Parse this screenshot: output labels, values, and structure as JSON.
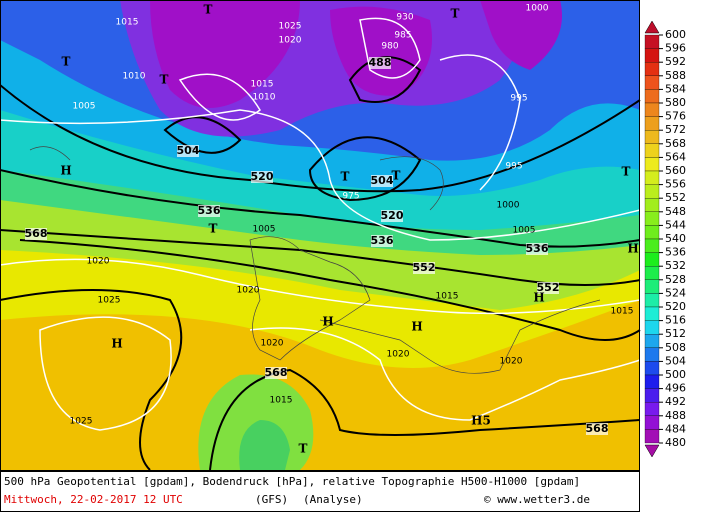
{
  "map": {
    "labels": [
      "1015",
      "T",
      "1025",
      "1020",
      "930",
      "985",
      "980",
      "488",
      "T",
      "1000",
      "T",
      "1010",
      "T",
      "1005",
      "1015",
      "1010",
      "995",
      "504",
      "T",
      "504",
      "T",
      "995",
      "H",
      "520",
      "975",
      "1000",
      "536",
      "T",
      "520",
      "1005",
      "568",
      "536",
      "1005",
      "536",
      "1020",
      "552",
      "552",
      "1025",
      "1020",
      "1015",
      "H",
      "H",
      "H",
      "1015",
      "H",
      "1020",
      "1020",
      "1020",
      "568",
      "1015",
      "1025",
      "H5",
      "T",
      "568",
      "T",
      "H"
    ]
  },
  "legend": {
    "ticks": [
      600,
      596,
      592,
      588,
      584,
      580,
      576,
      572,
      568,
      564,
      560,
      556,
      552,
      548,
      544,
      540,
      536,
      532,
      528,
      524,
      520,
      516,
      512,
      508,
      504,
      500,
      496,
      492,
      488,
      484,
      480
    ]
  },
  "footer": {
    "line1": "500 hPa Geopotential [gpdam], Bodendruck [hPa], relative Topographie H500-H1000 [gpdam]",
    "date": "Mittwoch, 22-02-2017  12 UTC",
    "model": "(GFS)",
    "analysis": "(Analyse)",
    "credit": "© www.wetter3.de"
  }
}
